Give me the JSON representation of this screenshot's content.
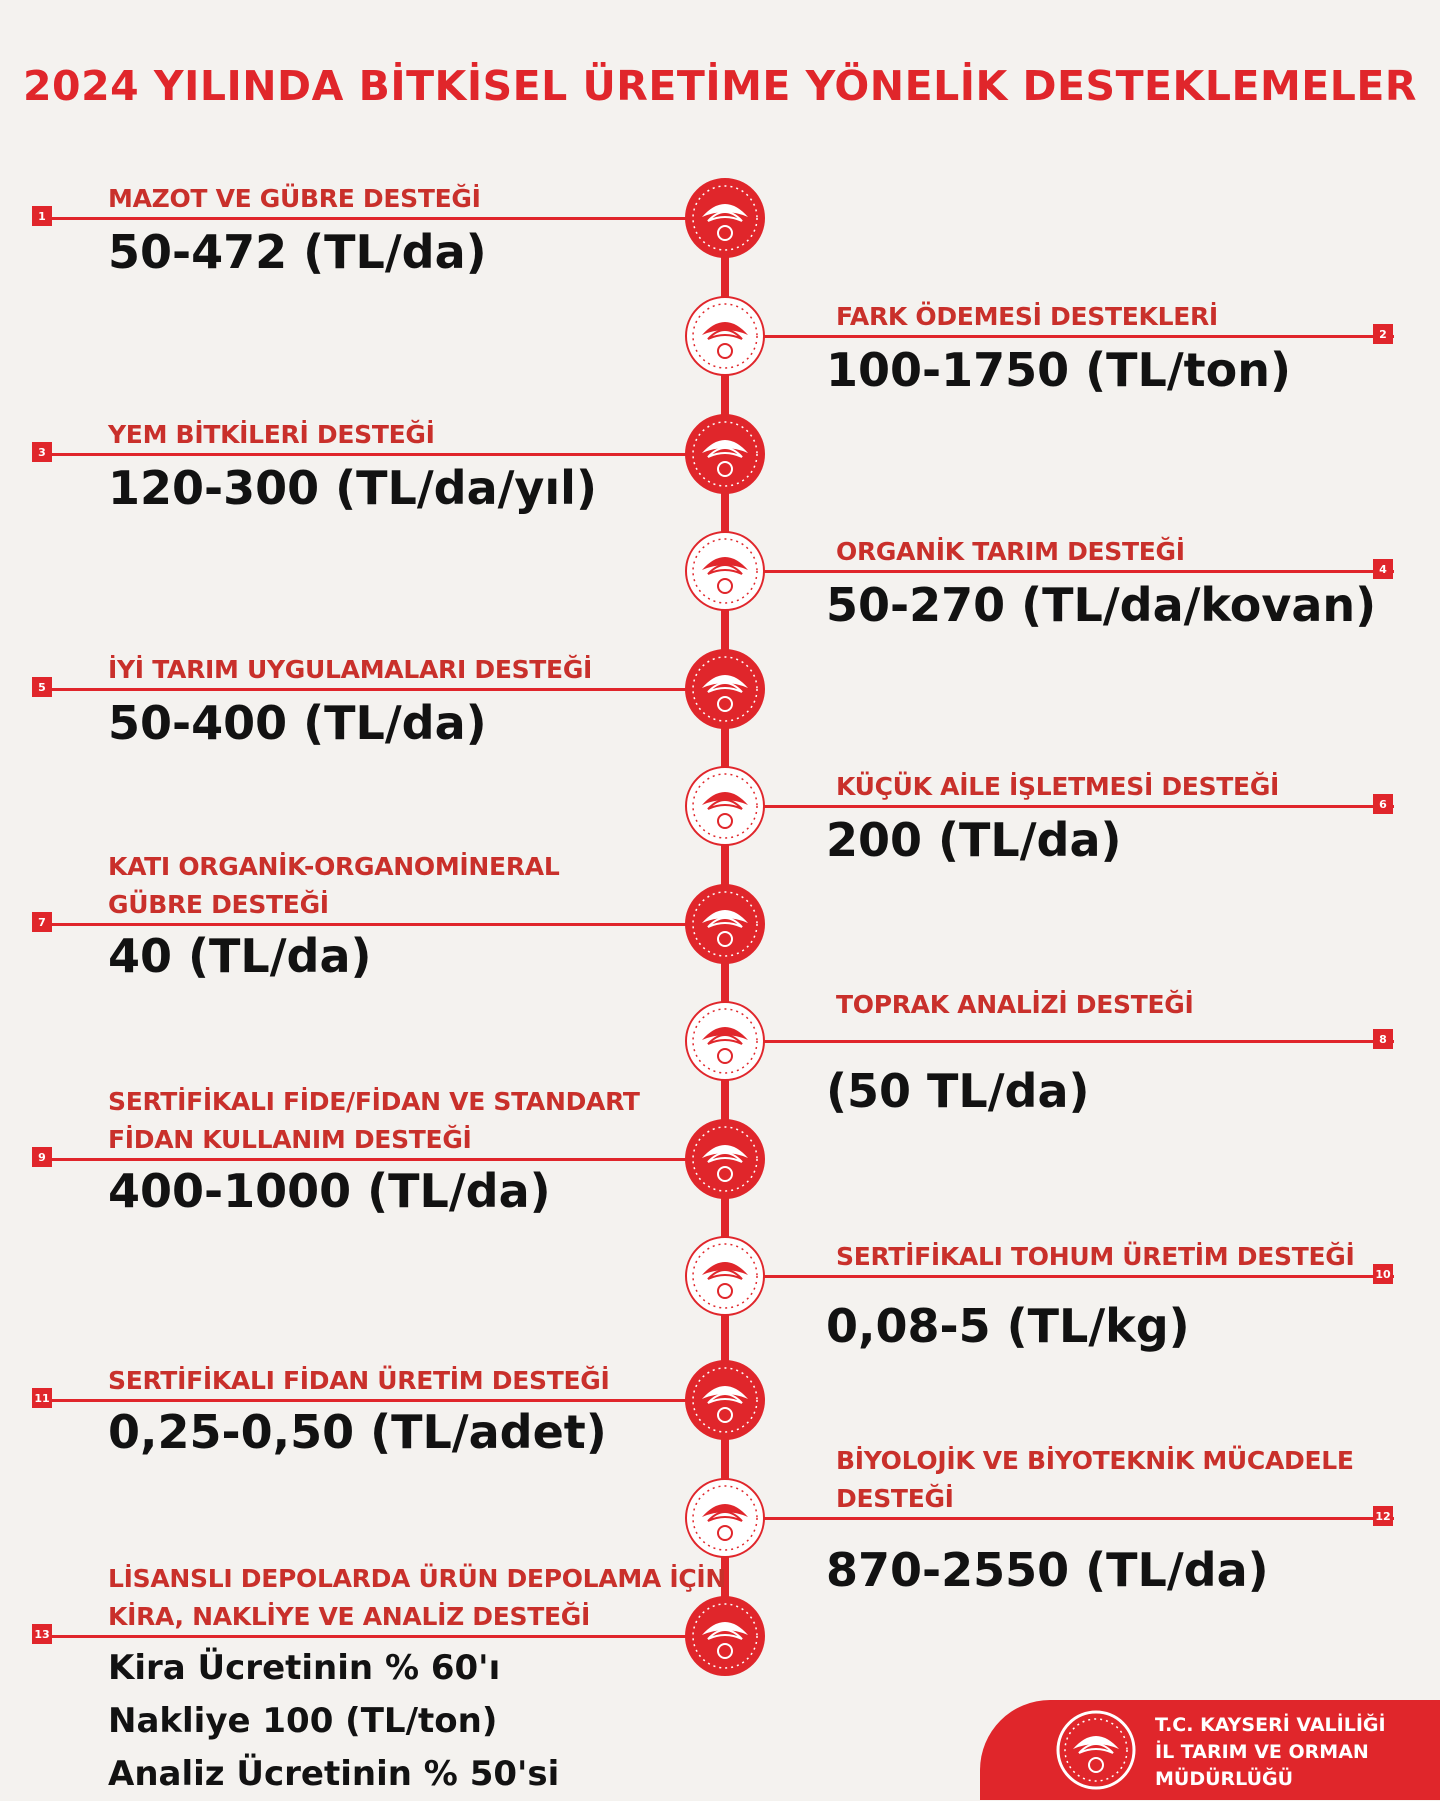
{
  "title": "2024 YILINDA BİTKİSEL ÜRETİME YÖNELİK DESTEKLEMELER",
  "colors": {
    "accent": "#e0262b",
    "label": "#c9302b",
    "value": "#121212",
    "background": "#f4f2ef"
  },
  "items": [
    {
      "number": "1",
      "label": [
        "MAZOT VE GÜBRE DESTEĞİ"
      ],
      "value": [
        "50-472 (TL/da)"
      ]
    },
    {
      "number": "2",
      "label": [
        "FARK ÖDEMESİ DESTEKLERİ"
      ],
      "value": [
        "100-1750 (TL/ton)"
      ]
    },
    {
      "number": "3",
      "label": [
        "YEM BİTKİLERİ DESTEĞİ"
      ],
      "value": [
        "120-300 (TL/da/yıl)"
      ]
    },
    {
      "number": "4",
      "label": [
        "ORGANİK TARIM DESTEĞİ"
      ],
      "value": [
        "50-270 (TL/da/kovan)"
      ]
    },
    {
      "number": "5",
      "label": [
        "İYİ TARIM UYGULAMALARI DESTEĞİ"
      ],
      "value": [
        "50-400 (TL/da)"
      ]
    },
    {
      "number": "6",
      "label": [
        "KÜÇÜK AİLE İŞLETMESİ DESTEĞİ"
      ],
      "value": [
        "200 (TL/da)"
      ]
    },
    {
      "number": "7",
      "label": [
        "KATI ORGANİK-ORGANOMİNERAL",
        "GÜBRE DESTEĞİ"
      ],
      "value": [
        "40 (TL/da)"
      ]
    },
    {
      "number": "8",
      "label": [
        "TOPRAK ANALİZİ DESTEĞİ"
      ],
      "value": [
        "(50 TL/da)"
      ]
    },
    {
      "number": "9",
      "label": [
        "SERTİFİKALI FİDE/FİDAN VE STANDART",
        "FİDAN KULLANIM DESTEĞİ"
      ],
      "value": [
        "400-1000 (TL/da)"
      ]
    },
    {
      "number": "10",
      "label": [
        "SERTİFİKALI TOHUM ÜRETİM DESTEĞİ"
      ],
      "value": [
        "0,08-5 (TL/kg)"
      ]
    },
    {
      "number": "11",
      "label": [
        "SERTİFİKALI FİDAN ÜRETİM DESTEĞİ"
      ],
      "value": [
        "0,25-0,50 (TL/adet)"
      ]
    },
    {
      "number": "12",
      "label": [
        "BİYOLOJİK VE BİYOTEKNİK MÜCADELE",
        "DESTEĞİ"
      ],
      "value": [
        "870-2550 (TL/da)"
      ]
    },
    {
      "number": "13",
      "label": [
        "LİSANSLI DEPOLARDA ÜRÜN DEPOLAMA İÇİN",
        "KİRA, NAKLİYE VE ANALİZ DESTEĞİ"
      ],
      "value": [
        "Kira Ücretinin % 60'ı",
        "Nakliye 100 (TL/ton)",
        "Analiz Ücretinin % 50'si"
      ]
    }
  ],
  "footer": {
    "organization": [
      "T.C. KAYSERİ VALİLİĞİ",
      "İL TARIM VE ORMAN",
      "MÜDÜRLÜĞÜ"
    ],
    "emblem": "ministry-emblem-icon"
  }
}
